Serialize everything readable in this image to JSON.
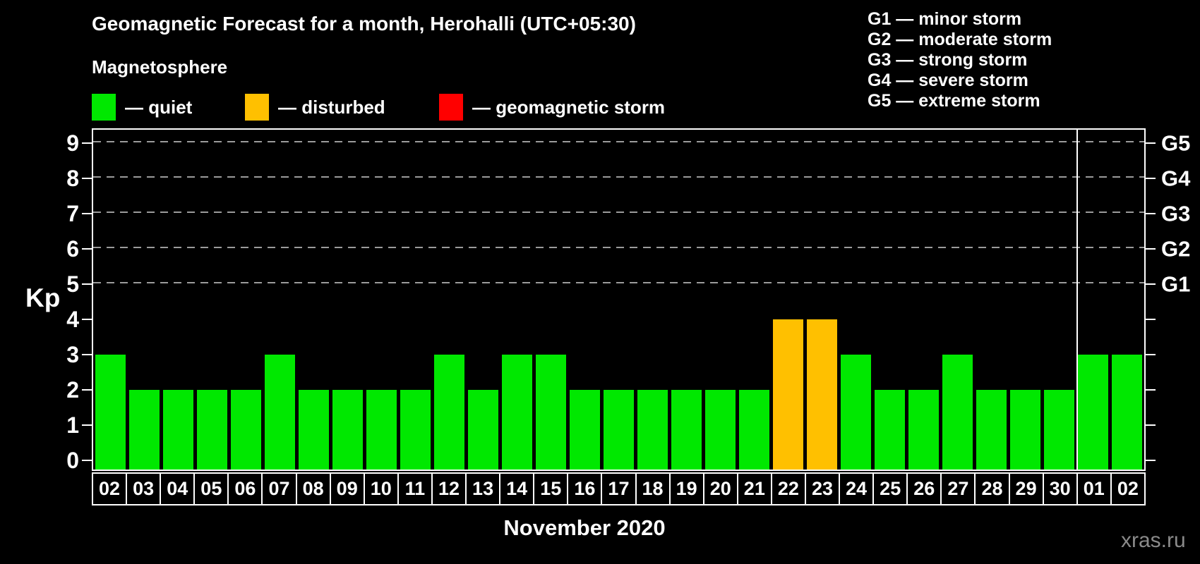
{
  "header": {
    "title": "Geomagnetic Forecast for a month, Herohalli (UTC+05:30)",
    "subtitle": "Magnetosphere"
  },
  "status_legend": [
    {
      "label": "— quiet",
      "status": "quiet"
    },
    {
      "label": "— disturbed",
      "status": "disturbed"
    },
    {
      "label": "— geomagnetic storm",
      "status": "storm"
    }
  ],
  "g_legend": [
    "G1 — minor storm",
    "G2 — moderate storm",
    "G3 — strong storm",
    "G4 — severe storm",
    "G5 — extreme storm"
  ],
  "axes": {
    "y_label": "Kp",
    "y_ticks": [
      0,
      1,
      2,
      3,
      4,
      5,
      6,
      7,
      8,
      9
    ],
    "right_axis_labels": [
      {
        "kp": 5,
        "label": "G1"
      },
      {
        "kp": 6,
        "label": "G2"
      },
      {
        "kp": 7,
        "label": "G3"
      },
      {
        "kp": 8,
        "label": "G4"
      },
      {
        "kp": 9,
        "label": "G5"
      }
    ],
    "x_title": "November 2020"
  },
  "watermark": "xras.ru",
  "colors": {
    "quiet": "#00e800",
    "disturbed": "#ffc000",
    "storm": "#ff0000",
    "background": "#000000",
    "grid": "#9b9b9b",
    "axis": "#ffffff",
    "watermark": "#8a8a8a"
  },
  "chart_data": {
    "type": "bar",
    "title": "Geomagnetic Forecast for a month, Herohalli (UTC+05:30)",
    "ylabel": "Kp",
    "ylim": [
      0,
      9
    ],
    "grid": "dashed horizontal lines at Kp 5-9 (G1-G5 storm levels)",
    "legend_position": "top-left",
    "categories": [
      "02",
      "03",
      "04",
      "05",
      "06",
      "07",
      "08",
      "09",
      "10",
      "11",
      "12",
      "13",
      "14",
      "15",
      "16",
      "17",
      "18",
      "19",
      "20",
      "21",
      "22",
      "23",
      "24",
      "25",
      "26",
      "27",
      "28",
      "29",
      "30",
      "01",
      "02"
    ],
    "values": [
      3,
      2,
      2,
      2,
      2,
      3,
      2,
      2,
      2,
      2,
      3,
      2,
      3,
      3,
      2,
      2,
      2,
      2,
      2,
      2,
      4,
      4,
      3,
      2,
      2,
      3,
      2,
      2,
      2,
      3,
      3
    ],
    "statuses": [
      "quiet",
      "quiet",
      "quiet",
      "quiet",
      "quiet",
      "quiet",
      "quiet",
      "quiet",
      "quiet",
      "quiet",
      "quiet",
      "quiet",
      "quiet",
      "quiet",
      "quiet",
      "quiet",
      "quiet",
      "quiet",
      "quiet",
      "quiet",
      "disturbed",
      "disturbed",
      "quiet",
      "quiet",
      "quiet",
      "quiet",
      "quiet",
      "quiet",
      "quiet",
      "quiet",
      "quiet"
    ],
    "month_label": "November 2020",
    "month_boundary_after_index": 28
  }
}
